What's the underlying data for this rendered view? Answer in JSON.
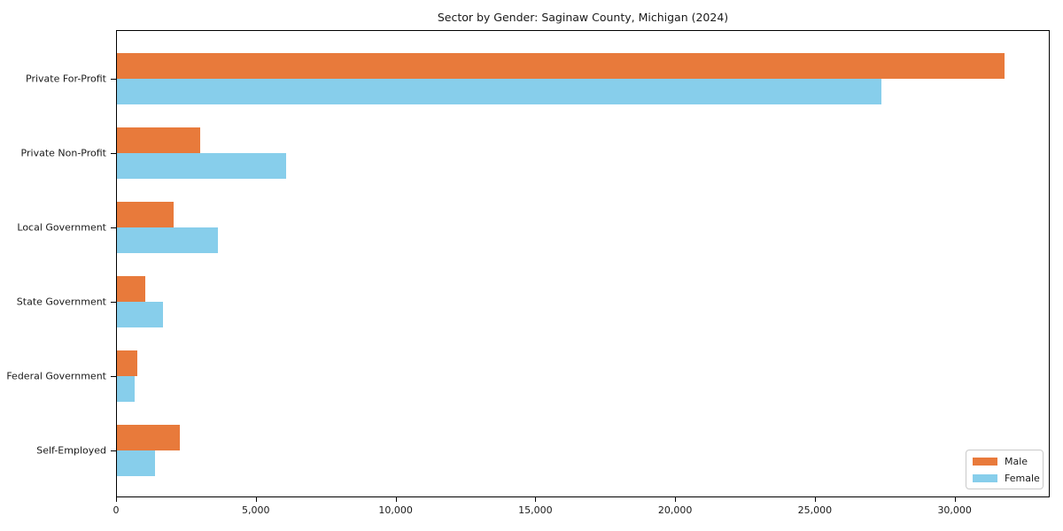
{
  "chart_data": {
    "type": "bar",
    "orientation": "horizontal",
    "title": "Sector by Gender: Saginaw County, Michigan (2024)",
    "categories": [
      "Private For-Profit",
      "Private Non-Profit",
      "Local Government",
      "State Government",
      "Federal Government",
      "Self-Employed"
    ],
    "series": [
      {
        "name": "Male",
        "color": "#e87a3b",
        "values": [
          31800,
          3000,
          2020,
          1010,
          730,
          2250
        ]
      },
      {
        "name": "Female",
        "color": "#87ceeb",
        "values": [
          27400,
          6080,
          3610,
          1650,
          630,
          1360
        ]
      }
    ],
    "xlabel": "",
    "ylabel": "",
    "xlim": [
      0,
      33400
    ],
    "xticks": {
      "values": [
        0,
        5000,
        10000,
        15000,
        20000,
        25000,
        30000
      ],
      "labels": [
        "0",
        "5,000",
        "10,000",
        "15,000",
        "20,000",
        "25,000",
        "30,000"
      ]
    },
    "legend": {
      "position": "lower right",
      "entries": [
        "Male",
        "Female"
      ]
    },
    "grid": false,
    "colors": {
      "spine": "#000000",
      "text": "#1a1a1a",
      "background": "#ffffff"
    }
  }
}
